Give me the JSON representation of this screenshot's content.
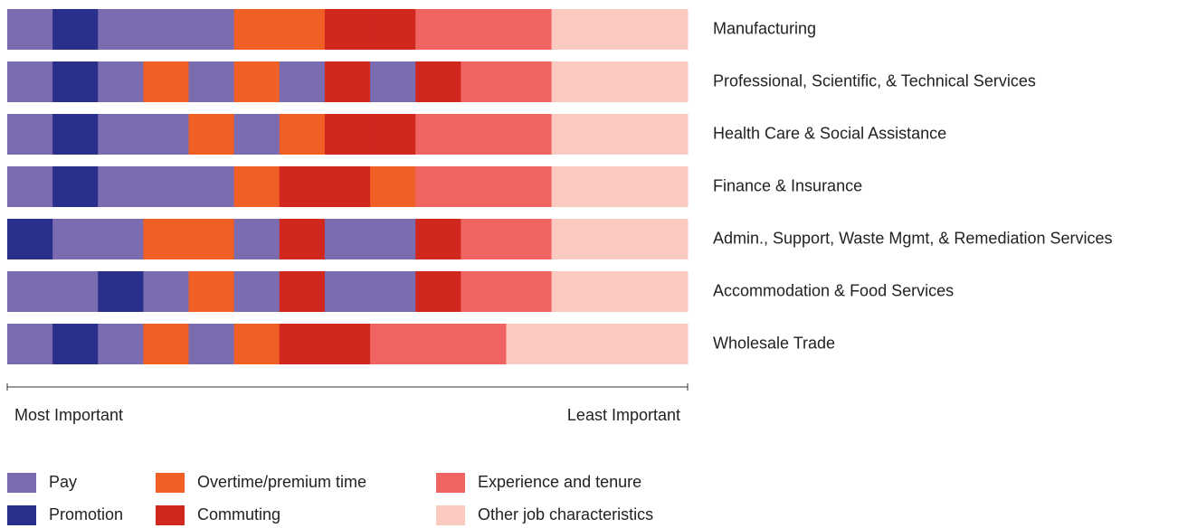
{
  "chart_data": {
    "type": "ranked-strip",
    "series": [
      {
        "name": "Pay",
        "color": "#7b6bb0"
      },
      {
        "name": "Promotion",
        "color": "#2b2f8c"
      },
      {
        "name": "Overtime/premium time",
        "color": "#f05f24"
      },
      {
        "name": "Commuting",
        "color": "#d0271f"
      },
      {
        "name": "Experience and tenure",
        "color": "#f06461"
      },
      {
        "name": "Other job characteristics",
        "color": "#fac9c0"
      }
    ],
    "rows": [
      {
        "label": "Manufacturing",
        "ranks": [
          0,
          1,
          0,
          0,
          0,
          2,
          2,
          3,
          3,
          4,
          4,
          4,
          5,
          5,
          5
        ]
      },
      {
        "label": "Professional, Scientific, & Technical Services",
        "ranks": [
          0,
          1,
          0,
          2,
          0,
          2,
          0,
          3,
          0,
          3,
          4,
          4,
          5,
          5,
          5
        ]
      },
      {
        "label": "Health Care & Social Assistance",
        "ranks": [
          0,
          1,
          0,
          0,
          2,
          0,
          2,
          3,
          3,
          4,
          4,
          4,
          5,
          5,
          5
        ]
      },
      {
        "label": "Finance & Insurance",
        "ranks": [
          0,
          1,
          0,
          0,
          0,
          2,
          3,
          3,
          2,
          4,
          4,
          4,
          5,
          5,
          5
        ]
      },
      {
        "label": "Admin., Support, Waste Mgmt, & Remediation Services",
        "ranks": [
          1,
          0,
          0,
          2,
          2,
          0,
          3,
          0,
          0,
          3,
          4,
          4,
          5,
          5,
          5
        ]
      },
      {
        "label": "Accommodation & Food Services",
        "ranks": [
          0,
          0,
          1,
          0,
          2,
          0,
          3,
          0,
          0,
          3,
          4,
          4,
          5,
          5,
          5
        ]
      },
      {
        "label": "Wholesale Trade",
        "ranks": [
          0,
          1,
          0,
          2,
          0,
          2,
          3,
          3,
          4,
          4,
          4,
          5,
          5,
          5,
          5
        ]
      }
    ],
    "axis_left_label": "Most Important",
    "axis_right_label": "Least Important"
  }
}
